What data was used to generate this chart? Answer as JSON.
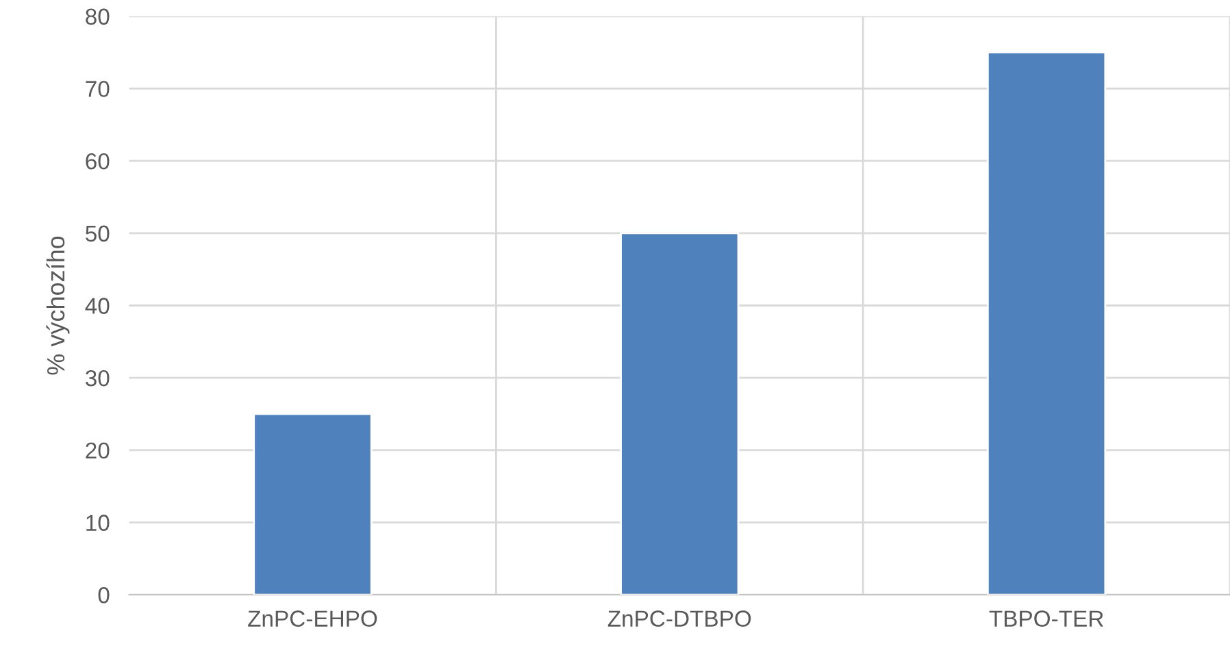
{
  "chart_data": {
    "type": "bar",
    "ylabel": "% výchozího",
    "categories": [
      "ZnPC-EHPO",
      "ZnPC-DTBPO",
      "TBPO-TER"
    ],
    "values": [
      25,
      50,
      75
    ],
    "color": "#4f81bd",
    "ylim": [
      0,
      80
    ],
    "yticks": [
      0,
      10,
      20,
      30,
      40,
      50,
      60,
      70,
      80
    ],
    "grid": true
  }
}
